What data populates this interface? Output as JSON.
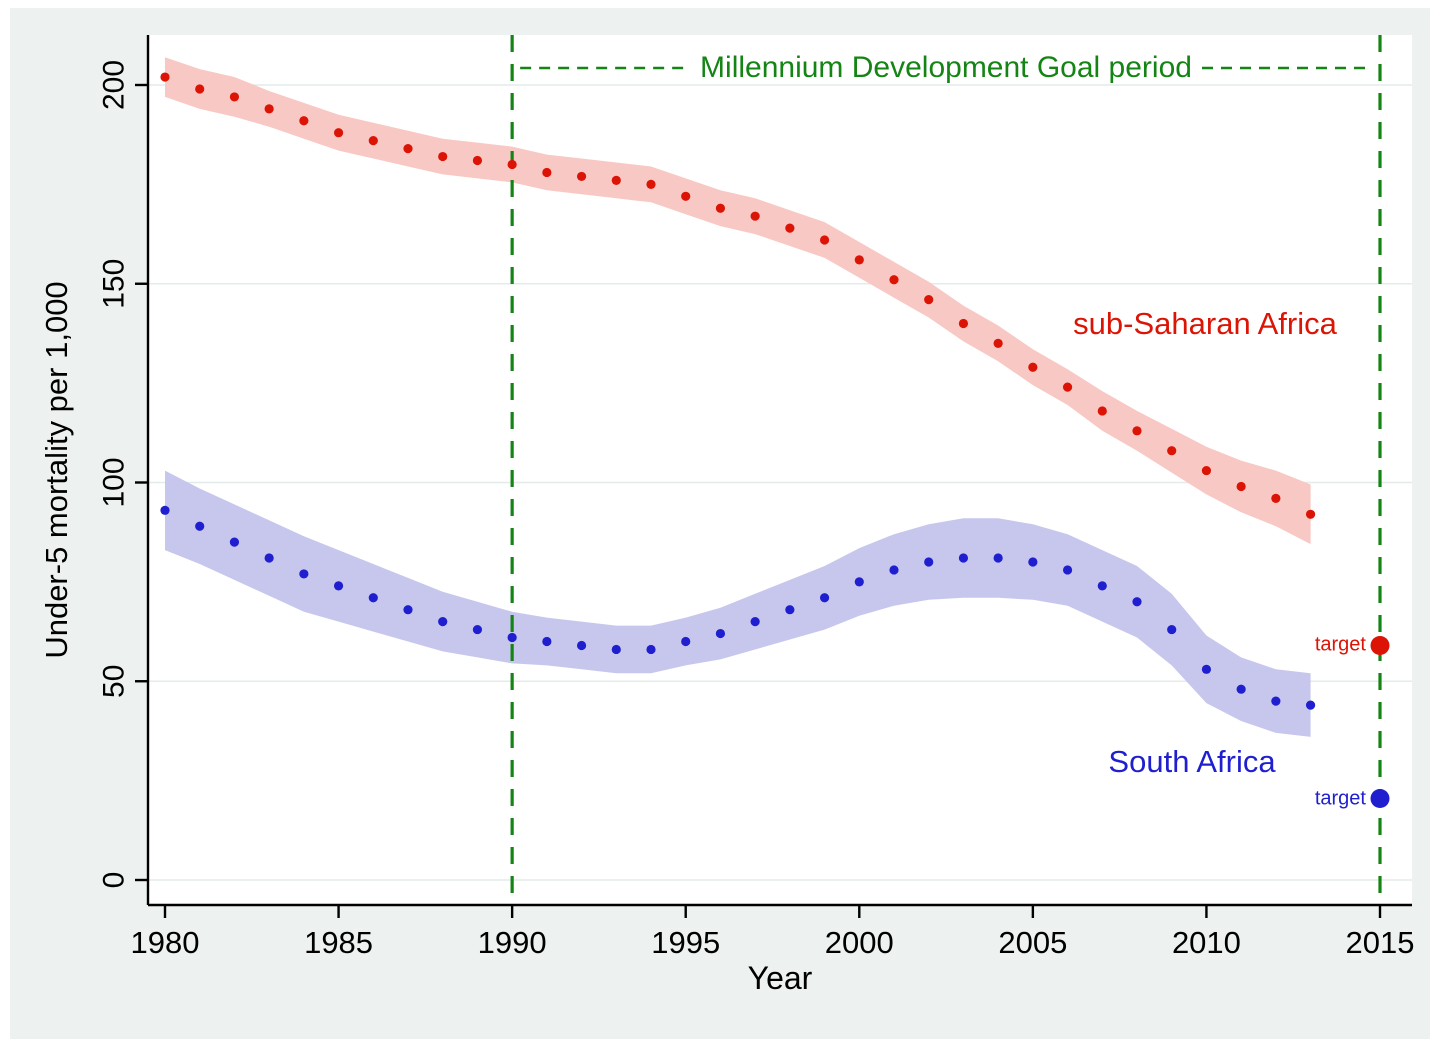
{
  "figure": {
    "bg_color": "#edf1f0",
    "plot_bg": "#ffffff",
    "grid_color": "#e4ebeb",
    "axis_color": "#000000"
  },
  "axes": {
    "y_title": "Under-5 mortality per 1,000",
    "x_title": "Year",
    "y_ticks": [
      0,
      50,
      100,
      150,
      200
    ],
    "x_ticks": [
      1980,
      1985,
      1990,
      1995,
      2000,
      2005,
      2010,
      2015
    ]
  },
  "annotations": {
    "mdg_label": "Millennium Development Goal period",
    "mdg_color": "#148514",
    "target_label": "target",
    "ssa_label": "sub-Saharan Africa",
    "sa_label": "South Africa"
  },
  "chart_data": {
    "type": "scatter",
    "title": "",
    "xlabel": "Year",
    "ylabel": "Under-5 mortality per 1,000",
    "xlim": [
      1979.5,
      2015.5
    ],
    "ylim": [
      0,
      210
    ],
    "grid": "horizontal",
    "legend_position": "inline-annotations",
    "x": [
      1980,
      1981,
      1982,
      1983,
      1984,
      1985,
      1986,
      1987,
      1988,
      1989,
      1990,
      1991,
      1992,
      1993,
      1994,
      1995,
      1996,
      1997,
      1998,
      1999,
      2000,
      2001,
      2002,
      2003,
      2004,
      2005,
      2006,
      2007,
      2008,
      2009,
      2010,
      2011,
      2012,
      2013
    ],
    "series": [
      {
        "name": "sub-Saharan Africa",
        "color": "#dc1405",
        "band_color": "#f8c8c4",
        "values": [
          202,
          199,
          197,
          194,
          191,
          188,
          186,
          184,
          182,
          181,
          180,
          178,
          177,
          176,
          175,
          172,
          169,
          167,
          164,
          161,
          156,
          151,
          146,
          140,
          135,
          129,
          124,
          118,
          113,
          108,
          103,
          99,
          96,
          92
        ],
        "band_halfwidth": [
          5,
          5,
          5,
          4.5,
          4.5,
          4.5,
          4.5,
          4.5,
          4.5,
          4.5,
          4.5,
          4.5,
          4.5,
          4.5,
          4.5,
          4.5,
          4.5,
          4.5,
          4.5,
          4.5,
          4.5,
          4.5,
          4.5,
          4.5,
          4.5,
          4.5,
          4.5,
          5,
          5,
          5.5,
          6,
          6.5,
          7,
          7.5
        ],
        "target": {
          "year": 2015,
          "value": 59
        }
      },
      {
        "name": "South Africa",
        "color": "#1f1fd0",
        "band_color": "#c7c7ee",
        "values": [
          93,
          89,
          85,
          81,
          77,
          74,
          71,
          68,
          65,
          63,
          61,
          60,
          59,
          58,
          58,
          60,
          62,
          65,
          68,
          71,
          75,
          78,
          80,
          81,
          81,
          80,
          78,
          74,
          70,
          63,
          53,
          48,
          45,
          44
        ],
        "band_halfwidth": [
          10,
          9.5,
          9.5,
          9.5,
          9.5,
          9,
          8.5,
          8,
          7.5,
          7,
          6.5,
          6,
          6,
          6,
          6,
          6,
          6.5,
          7,
          7.5,
          8,
          8.5,
          9,
          9.5,
          10,
          10,
          9.5,
          9,
          9,
          9,
          9,
          8.5,
          8,
          8,
          8
        ],
        "target": {
          "year": 2015,
          "value": 20.5
        }
      }
    ],
    "vlines": [
      1990,
      2015
    ]
  }
}
